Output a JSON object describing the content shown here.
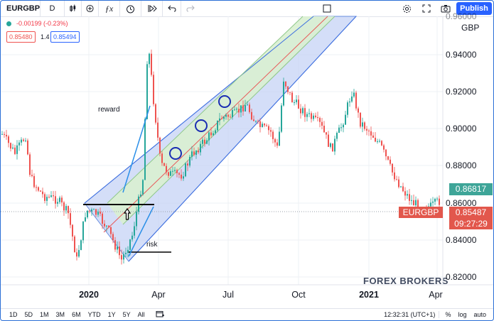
{
  "toolbar": {
    "symbol": "EURGBP",
    "interval": "D",
    "publish": "Publish"
  },
  "legend": {
    "change": "-0.00199 (-0.23%)",
    "bid": "0.85480",
    "spread": "1.4",
    "ask": "0.85494"
  },
  "price_axis": {
    "currency": "GBP",
    "labels": [
      "0.94000",
      "0.92000",
      "0.90000",
      "0.88000",
      "0.86000",
      "0.84000",
      "0.82000"
    ],
    "top_partial": "0.96000"
  },
  "time_axis": {
    "labels": [
      "2020",
      "Apr",
      "Jul",
      "Oct",
      "2021",
      "Apr"
    ]
  },
  "price_tags": {
    "green_value": "0.86817",
    "symbol_tag": "EURGBP",
    "last_price": "0.85487",
    "countdown": "09:27:29"
  },
  "annotations": {
    "reward": "reward",
    "risk": "risk"
  },
  "watermark": "FOREX BROKERS",
  "bottom_bar": {
    "ranges": [
      "1D",
      "5D",
      "1M",
      "3M",
      "6M",
      "YTD",
      "1Y",
      "5Y",
      "All"
    ],
    "time": "12:32:31 (UTC+1)",
    "percent": "%",
    "log": "log",
    "auto": "auto"
  },
  "colors": {
    "accent": "#2962ff",
    "up": "#26a69a",
    "down": "#ef5350",
    "channel_outer": "#c5d3f6",
    "channel_inner": "#d9efd0",
    "last_price_tag": "#e2574c",
    "green_tag": "#3ea598"
  }
}
